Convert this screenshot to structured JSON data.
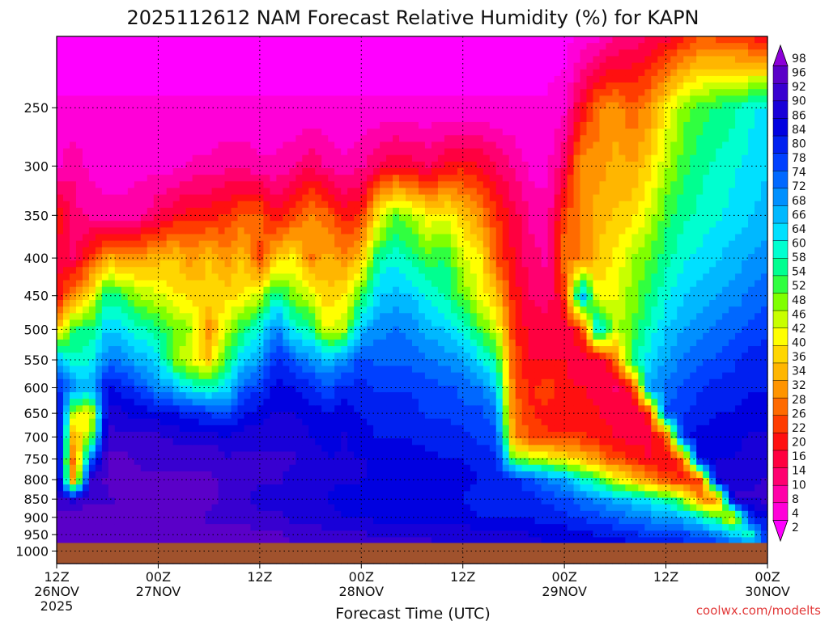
{
  "chart_data": {
    "type": "heatmap",
    "title": "2025112612 NAM Forecast Relative Humidity (%) for KAPN",
    "xlabel": "Forecast Time (UTC)",
    "ylabel": "",
    "credit": "coolwx.com/modelts",
    "x_unit": "hours since 2025-11-26 12Z",
    "xlim": [
      0,
      84
    ],
    "ylim": [
      1040,
      200
    ],
    "y_scale": "log-pressure",
    "grid": true,
    "x_ticks": [
      {
        "h": 0,
        "line1": "12Z",
        "line2": "26NOV",
        "line3": "2025"
      },
      {
        "h": 12,
        "line1": "00Z",
        "line2": "27NOV",
        "line3": ""
      },
      {
        "h": 24,
        "line1": "12Z",
        "line2": "",
        "line3": ""
      },
      {
        "h": 36,
        "line1": "00Z",
        "line2": "28NOV",
        "line3": ""
      },
      {
        "h": 48,
        "line1": "12Z",
        "line2": "",
        "line3": ""
      },
      {
        "h": 60,
        "line1": "00Z",
        "line2": "29NOV",
        "line3": ""
      },
      {
        "h": 72,
        "line1": "12Z",
        "line2": "",
        "line3": ""
      },
      {
        "h": 84,
        "line1": "00Z",
        "line2": "30NOV",
        "line3": ""
      }
    ],
    "y_ticks": [
      250,
      300,
      350,
      400,
      450,
      500,
      550,
      600,
      650,
      700,
      750,
      800,
      850,
      900,
      950,
      1000
    ],
    "colorbar": {
      "labels": [
        2,
        4,
        8,
        10,
        14,
        16,
        20,
        22,
        26,
        28,
        32,
        34,
        36,
        40,
        42,
        46,
        48,
        52,
        54,
        58,
        60,
        64,
        66,
        68,
        72,
        74,
        78,
        80,
        84,
        86,
        90,
        92,
        96,
        98
      ],
      "colors": [
        "#ff00ff",
        "#ff00d8",
        "#ff00a8",
        "#ff0070",
        "#ff0040",
        "#ff1010",
        "#ff3c00",
        "#ff6a00",
        "#ff9400",
        "#ffb600",
        "#ffd600",
        "#ffff00",
        "#c8ff00",
        "#80ff00",
        "#30ff40",
        "#00ff90",
        "#00ffd0",
        "#00e0ff",
        "#00b8ff",
        "#0090ff",
        "#0068ff",
        "#0040ff",
        "#0020f0",
        "#0000e0",
        "#1800d8",
        "#3800d0",
        "#5a00c8",
        "#8c00d8"
      ]
    },
    "terrain_color": "#a0522d",
    "surface_pressure_hpa": 975,
    "rh_breakpoints_description": "RH (%) at pressure levels (hPa) per forecast hour; values estimated from the colored contours",
    "levels_hpa": [
      200,
      250,
      300,
      350,
      400,
      450,
      500,
      550,
      600,
      650,
      700,
      750,
      800,
      850,
      900,
      950,
      1000
    ],
    "columns": [
      {
        "h": 0,
        "rh": [
          2,
          4,
          6,
          22,
          16,
          18,
          36,
          66,
          80,
          90,
          92,
          92,
          94,
          92,
          94,
          96,
          96
        ]
      },
      {
        "h": 2,
        "rh": [
          2,
          4,
          10,
          12,
          14,
          30,
          54,
          58,
          70,
          44,
          32,
          24,
          28,
          88,
          96,
          96,
          96
        ]
      },
      {
        "h": 4,
        "rh": [
          2,
          4,
          6,
          10,
          22,
          40,
          54,
          60,
          66,
          40,
          48,
          72,
          90,
          92,
          96,
          96,
          96
        ]
      },
      {
        "h": 6,
        "rh": [
          2,
          4,
          6,
          8,
          34,
          56,
          64,
          72,
          84,
          88,
          92,
          94,
          94,
          92,
          94,
          96,
          96
        ]
      },
      {
        "h": 8,
        "rh": [
          2,
          4,
          6,
          8,
          30,
          52,
          62,
          70,
          80,
          86,
          90,
          94,
          94,
          94,
          94,
          96,
          96
        ]
      },
      {
        "h": 10,
        "rh": [
          2,
          4,
          6,
          10,
          32,
          46,
          58,
          66,
          76,
          84,
          90,
          92,
          94,
          94,
          94,
          96,
          96
        ]
      },
      {
        "h": 12,
        "rh": [
          2,
          4,
          6,
          14,
          34,
          44,
          54,
          62,
          70,
          84,
          90,
          92,
          94,
          94,
          94,
          96,
          96
        ]
      },
      {
        "h": 14,
        "rh": [
          2,
          4,
          6,
          18,
          36,
          40,
          50,
          48,
          66,
          82,
          88,
          92,
          94,
          94,
          94,
          96,
          96
        ]
      },
      {
        "h": 16,
        "rh": [
          2,
          4,
          8,
          20,
          30,
          38,
          46,
          42,
          60,
          80,
          88,
          92,
          94,
          94,
          94,
          96,
          96
        ]
      },
      {
        "h": 18,
        "rh": [
          2,
          4,
          8,
          20,
          36,
          38,
          30,
          36,
          58,
          78,
          88,
          92,
          94,
          94,
          92,
          94,
          96
        ]
      },
      {
        "h": 20,
        "rh": [
          2,
          4,
          10,
          22,
          30,
          38,
          44,
          52,
          62,
          76,
          86,
          90,
          92,
          92,
          92,
          94,
          96
        ]
      },
      {
        "h": 22,
        "rh": [
          2,
          4,
          10,
          26,
          36,
          40,
          54,
          64,
          74,
          82,
          88,
          90,
          92,
          90,
          92,
          94,
          96
        ]
      },
      {
        "h": 24,
        "rh": [
          2,
          4,
          8,
          26,
          24,
          44,
          60,
          68,
          78,
          84,
          88,
          90,
          90,
          88,
          90,
          94,
          94
        ]
      },
      {
        "h": 26,
        "rh": [
          2,
          4,
          8,
          18,
          36,
          58,
          72,
          80,
          84,
          86,
          88,
          90,
          90,
          88,
          90,
          94,
          94
        ]
      },
      {
        "h": 28,
        "rh": [
          2,
          4,
          10,
          24,
          40,
          48,
          60,
          74,
          82,
          86,
          88,
          90,
          88,
          86,
          88,
          92,
          94
        ]
      },
      {
        "h": 30,
        "rh": [
          2,
          4,
          14,
          30,
          28,
          44,
          56,
          70,
          80,
          84,
          86,
          88,
          88,
          86,
          88,
          92,
          94
        ]
      },
      {
        "h": 32,
        "rh": [
          2,
          4,
          10,
          26,
          34,
          36,
          42,
          66,
          76,
          82,
          84,
          86,
          86,
          86,
          86,
          90,
          94
        ]
      },
      {
        "h": 34,
        "rh": [
          2,
          4,
          8,
          20,
          30,
          40,
          46,
          70,
          80,
          84,
          86,
          86,
          86,
          84,
          86,
          90,
          92
        ]
      },
      {
        "h": 36,
        "rh": [
          2,
          4,
          10,
          22,
          36,
          52,
          66,
          76,
          80,
          82,
          84,
          86,
          86,
          84,
          86,
          90,
          92
        ]
      },
      {
        "h": 38,
        "rh": [
          2,
          4,
          14,
          40,
          56,
          64,
          70,
          74,
          78,
          80,
          82,
          84,
          84,
          82,
          84,
          88,
          92
        ]
      },
      {
        "h": 40,
        "rh": [
          2,
          4,
          18,
          50,
          60,
          66,
          72,
          74,
          78,
          80,
          82,
          84,
          84,
          82,
          84,
          88,
          92
        ]
      },
      {
        "h": 42,
        "rh": [
          2,
          4,
          16,
          46,
          56,
          64,
          70,
          74,
          78,
          80,
          82,
          84,
          84,
          82,
          84,
          88,
          92
        ]
      },
      {
        "h": 44,
        "rh": [
          2,
          4,
          14,
          40,
          52,
          60,
          66,
          72,
          76,
          78,
          80,
          84,
          84,
          82,
          84,
          88,
          92
        ]
      },
      {
        "h": 46,
        "rh": [
          2,
          4,
          18,
          42,
          54,
          56,
          64,
          70,
          76,
          78,
          80,
          82,
          84,
          82,
          84,
          88,
          90
        ]
      },
      {
        "h": 48,
        "rh": [
          2,
          4,
          20,
          36,
          44,
          50,
          60,
          68,
          74,
          76,
          80,
          82,
          84,
          82,
          84,
          88,
          90
        ]
      },
      {
        "h": 50,
        "rh": [
          2,
          4,
          18,
          30,
          40,
          42,
          52,
          62,
          72,
          76,
          78,
          80,
          82,
          80,
          82,
          86,
          88
        ]
      },
      {
        "h": 52,
        "rh": [
          2,
          4,
          14,
          22,
          24,
          36,
          44,
          56,
          64,
          72,
          76,
          80,
          82,
          80,
          82,
          86,
          88
        ]
      },
      {
        "h": 54,
        "rh": [
          2,
          4,
          10,
          16,
          18,
          20,
          22,
          24,
          26,
          28,
          30,
          50,
          80,
          80,
          82,
          86,
          88
        ]
      },
      {
        "h": 56,
        "rh": [
          2,
          4,
          6,
          10,
          12,
          14,
          16,
          18,
          20,
          22,
          24,
          46,
          76,
          80,
          82,
          86,
          88
        ]
      },
      {
        "h": 58,
        "rh": [
          2,
          4,
          6,
          8,
          10,
          12,
          16,
          18,
          24,
          20,
          22,
          44,
          70,
          78,
          80,
          84,
          86
        ]
      },
      {
        "h": 60,
        "rh": [
          2,
          6,
          14,
          24,
          28,
          22,
          16,
          18,
          18,
          20,
          22,
          40,
          68,
          76,
          80,
          84,
          86
        ]
      },
      {
        "h": 62,
        "rh": [
          4,
          18,
          32,
          30,
          28,
          70,
          20,
          16,
          18,
          20,
          22,
          36,
          60,
          72,
          78,
          84,
          86
        ]
      },
      {
        "h": 64,
        "rh": [
          6,
          28,
          30,
          34,
          36,
          40,
          66,
          14,
          16,
          18,
          20,
          30,
          52,
          70,
          76,
          82,
          86
        ]
      },
      {
        "h": 66,
        "rh": [
          10,
          30,
          34,
          36,
          40,
          42,
          46,
          26,
          14,
          16,
          18,
          24,
          44,
          66,
          74,
          82,
          86
        ]
      },
      {
        "h": 68,
        "rh": [
          12,
          26,
          32,
          38,
          46,
          48,
          50,
          56,
          20,
          14,
          16,
          22,
          36,
          64,
          72,
          80,
          84
        ]
      },
      {
        "h": 70,
        "rh": [
          14,
          30,
          38,
          44,
          50,
          54,
          58,
          62,
          70,
          20,
          16,
          18,
          30,
          60,
          70,
          78,
          84
        ]
      },
      {
        "h": 72,
        "rh": [
          16,
          40,
          46,
          52,
          56,
          60,
          64,
          68,
          72,
          76,
          22,
          18,
          24,
          56,
          68,
          78,
          84
        ]
      },
      {
        "h": 74,
        "rh": [
          20,
          48,
          52,
          56,
          60,
          64,
          68,
          72,
          76,
          78,
          80,
          24,
          20,
          48,
          66,
          76,
          84
        ]
      },
      {
        "h": 76,
        "rh": [
          24,
          52,
          56,
          58,
          62,
          66,
          70,
          74,
          78,
          80,
          84,
          86,
          22,
          30,
          60,
          74,
          84
        ]
      },
      {
        "h": 78,
        "rh": [
          24,
          54,
          58,
          60,
          64,
          68,
          72,
          76,
          80,
          82,
          84,
          86,
          88,
          26,
          52,
          70,
          82
        ]
      },
      {
        "h": 80,
        "rh": [
          22,
          56,
          60,
          62,
          66,
          70,
          74,
          78,
          80,
          82,
          84,
          86,
          88,
          90,
          40,
          64,
          80
        ]
      },
      {
        "h": 82,
        "rh": [
          20,
          60,
          62,
          64,
          68,
          72,
          76,
          80,
          82,
          84,
          86,
          88,
          88,
          90,
          80,
          58,
          76
        ]
      },
      {
        "h": 84,
        "rh": [
          18,
          62,
          64,
          66,
          70,
          74,
          78,
          80,
          82,
          84,
          86,
          88,
          90,
          90,
          84,
          80,
          80
        ]
      }
    ]
  }
}
